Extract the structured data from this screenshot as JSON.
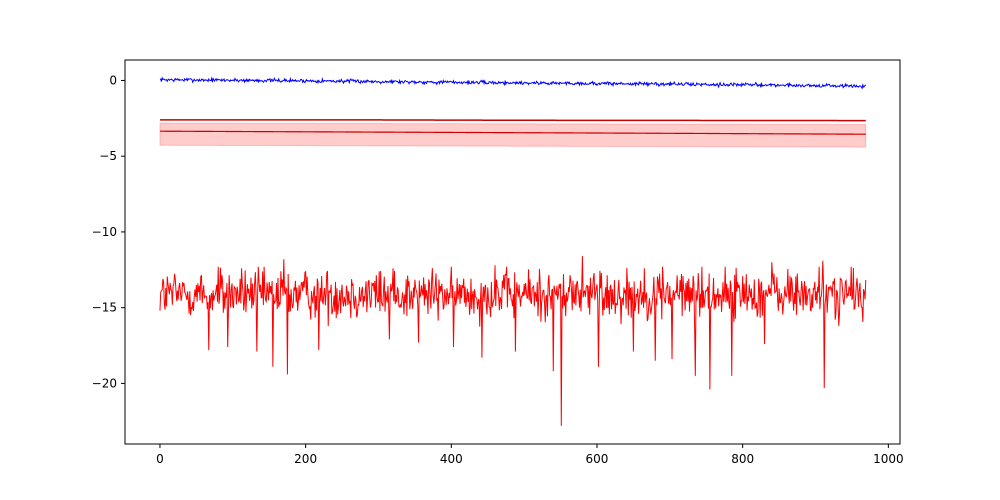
{
  "chart_data": {
    "type": "line",
    "title": "",
    "xlabel": "",
    "ylabel": "",
    "xlim": [
      -48,
      1016
    ],
    "ylim": [
      -24.0,
      1.35
    ],
    "x_ticks": [
      0,
      200,
      400,
      600,
      800,
      1000
    ],
    "x_tick_labels": [
      "0",
      "200",
      "400",
      "600",
      "800",
      "1000"
    ],
    "y_ticks": [
      0,
      -5,
      -10,
      -15,
      -20
    ],
    "y_tick_labels": [
      "0",
      "−5",
      "−10",
      "−15",
      "−20"
    ],
    "grid": false,
    "legend": "none",
    "n_points": 970,
    "series": [
      {
        "color": "#0000ff",
        "style": "noisy-line",
        "trend": [
          [
            0,
            0.05
          ],
          [
            200,
            -0.02
          ],
          [
            400,
            -0.12
          ],
          [
            600,
            -0.2
          ],
          [
            800,
            -0.28
          ],
          [
            969,
            -0.38
          ]
        ],
        "noise_amplitude": 0.1
      },
      {
        "color": "#cc0000",
        "style": "line",
        "values_at": [
          [
            0,
            -2.6
          ],
          [
            250,
            -2.6
          ],
          [
            500,
            -2.63
          ],
          [
            750,
            -2.64
          ],
          [
            969,
            -2.65
          ]
        ]
      },
      {
        "color": "#cc0000",
        "style": "line-with-band",
        "band_color": "#ff0000",
        "band_opacity": 0.2,
        "center": [
          [
            0,
            -3.35
          ],
          [
            250,
            -3.4
          ],
          [
            500,
            -3.45
          ],
          [
            750,
            -3.5
          ],
          [
            969,
            -3.55
          ]
        ],
        "band_lower": [
          [
            0,
            -4.28
          ],
          [
            969,
            -4.4
          ]
        ],
        "band_upper": [
          [
            0,
            -2.82
          ],
          [
            969,
            -2.9
          ]
        ]
      },
      {
        "color": "#ff0000",
        "style": "noisy-line",
        "mean": -14.1,
        "range": [
          -16.4,
          -12.3
        ],
        "min": -22.8,
        "max": -11.6,
        "notable_dips": [
          [
            67,
            -17.8
          ],
          [
            93,
            -17.6
          ],
          [
            133,
            -17.9
          ],
          [
            155,
            -18.9
          ],
          [
            175,
            -19.4
          ],
          [
            218,
            -17.8
          ],
          [
            315,
            -17.1
          ],
          [
            355,
            -17.3
          ],
          [
            403,
            -17.6
          ],
          [
            442,
            -18.3
          ],
          [
            488,
            -17.9
          ],
          [
            540,
            -19.2
          ],
          [
            551,
            -22.8
          ],
          [
            580,
            -18.0
          ],
          [
            602,
            -18.9
          ],
          [
            650,
            -17.9
          ],
          [
            680,
            -18.5
          ],
          [
            703,
            -18.4
          ],
          [
            735,
            -19.5
          ],
          [
            755,
            -20.4
          ],
          [
            785,
            -19.5
          ],
          [
            830,
            -17.4
          ],
          [
            912,
            -20.3
          ]
        ],
        "notable_peaks": [
          [
            80,
            -12.3
          ],
          [
            170,
            -11.8
          ],
          [
            320,
            -12.4
          ],
          [
            460,
            -12.2
          ],
          [
            580,
            -11.6
          ],
          [
            690,
            -12.3
          ],
          [
            840,
            -12.0
          ],
          [
            910,
            -11.9
          ]
        ]
      }
    ]
  }
}
